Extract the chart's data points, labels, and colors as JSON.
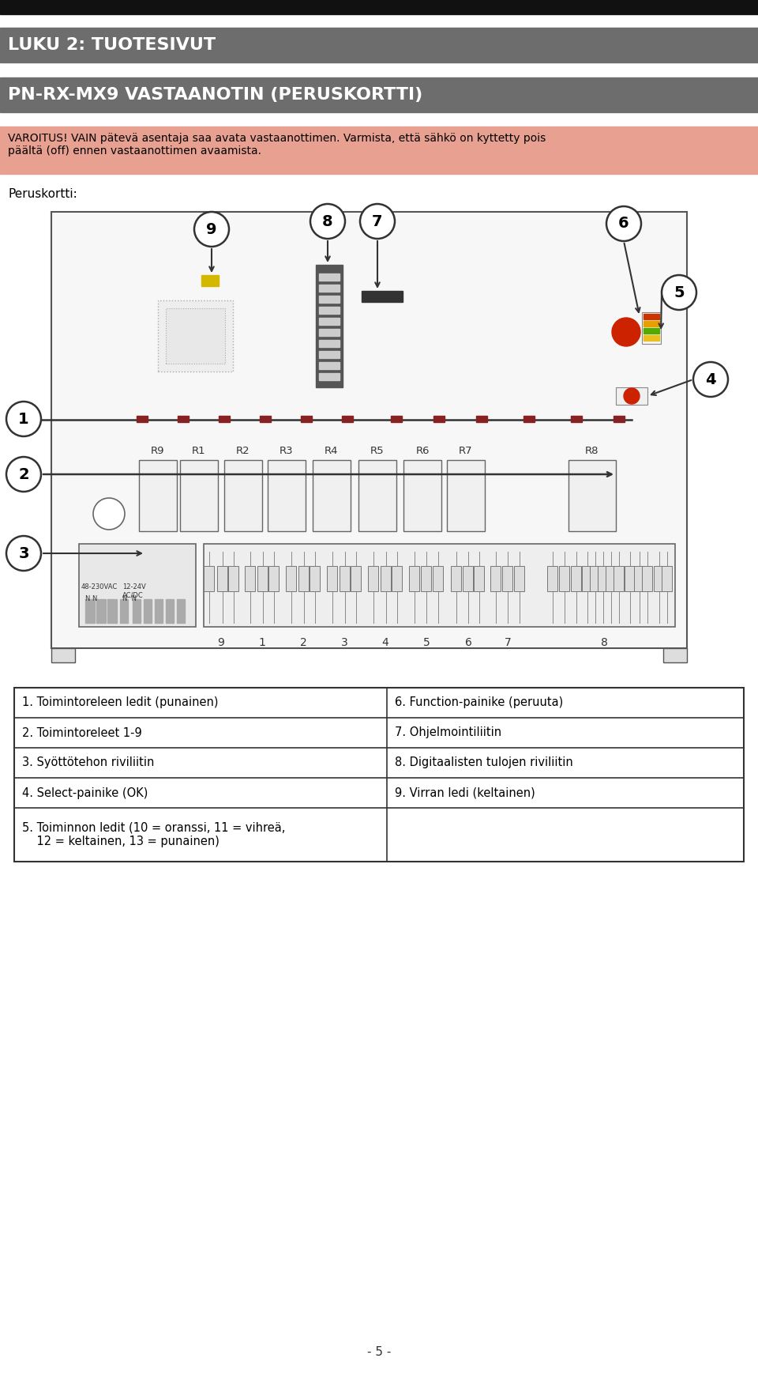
{
  "bg_color": "#ffffff",
  "header_color": "#6d6d6d",
  "header_text_color": "#ffffff",
  "title1": "LUKU 2: TUOTESIVUT",
  "title2": "PN-RX-MX9 VASTAANOTIN (PERUSKORTTI)",
  "warning_title": "VAROITUS!",
  "warning_text": " VAIN pätevä asentaja saa avata vastaanottimen. Varmista, että sähkö on kyttetty pois\npäältä (off) ennen vastaanottimen avaamista.",
  "warning_bg": "#e8a090",
  "section_label": "Peruskortti:",
  "table_left": [
    "1. Toimintoreleen ledit (punainen)",
    "2. Toimintoreleet 1-9",
    "3. Syöttötehon riviliitin",
    "4. Select-painike (OK)",
    "5. Toiminnon ledit (10 = oranssi, 11 = vihreä,\n    12 = keltainen, 13 = punainen)"
  ],
  "table_right": [
    "6. Function-painike (peruuta)",
    "7. Ohjelmointiliitin",
    "8. Digitaalisten tulojen riviliitin",
    "9. Virran ledi (keltainen)",
    ""
  ],
  "page_number": "- 5 -",
  "r_labels": [
    "R9",
    "R1",
    "R2",
    "R3",
    "R4",
    "R5",
    "R6",
    "R7",
    "R8"
  ],
  "num_labels": [
    "9",
    "1",
    "2",
    "3",
    "4",
    "5",
    "6",
    "7",
    "8"
  ]
}
